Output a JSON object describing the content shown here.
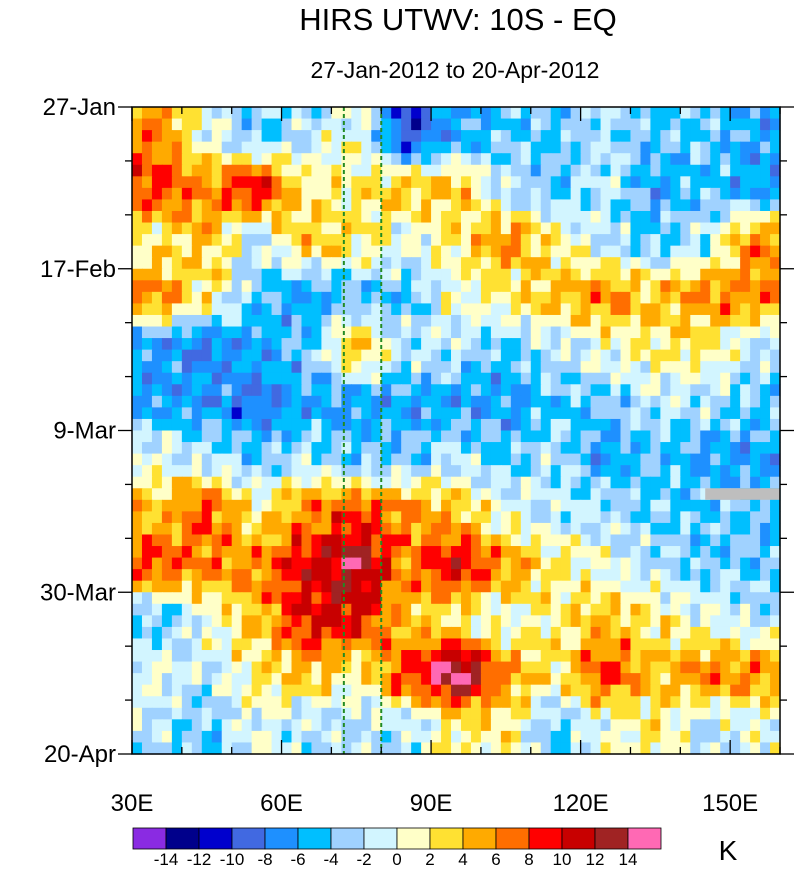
{
  "chart_data": {
    "type": "heatmap",
    "title": "HIRS UTWV: 10S - EQ",
    "subtitle": "27-Jan-2012 to 20-Apr-2012",
    "xlabel": "",
    "ylabel": "",
    "xlim": [
      30,
      160
    ],
    "ylim_days": [
      0,
      84
    ],
    "x_ticks": [
      {
        "value": 30,
        "label": "30E"
      },
      {
        "value": 60,
        "label": "60E"
      },
      {
        "value": 90,
        "label": "90E"
      },
      {
        "value": 120,
        "label": "120E"
      },
      {
        "value": 150,
        "label": "150E"
      }
    ],
    "y_ticks": [
      {
        "value": 0,
        "label": "27-Jan"
      },
      {
        "value": 21,
        "label": "17-Feb"
      },
      {
        "value": 42,
        "label": "9-Mar"
      },
      {
        "value": 63,
        "label": "30-Mar"
      },
      {
        "value": 84,
        "label": "20-Apr"
      }
    ],
    "reference_lines_lon": [
      72.5,
      80
    ],
    "reference_line_color": "#228B22",
    "missing_data": {
      "lon": [
        145,
        160
      ],
      "day": [
        49.5,
        51
      ],
      "color": "#BEBEBE"
    },
    "grid_lons": [
      35,
      45,
      55,
      65,
      75,
      85,
      95,
      105,
      115,
      125,
      135,
      145,
      155
    ],
    "grid_days": [
      3.5,
      10.5,
      17.5,
      24.5,
      31.5,
      38.5,
      45.5,
      52.5,
      59.5,
      66.5,
      73.5,
      80.5
    ],
    "values": [
      [
        6,
        0,
        -4,
        -2,
        0,
        -10,
        -6,
        -4,
        -4,
        -2,
        -4,
        -4,
        -6
      ],
      [
        8,
        6,
        10,
        2,
        2,
        4,
        4,
        -2,
        -4,
        -2,
        -6,
        -4,
        -6
      ],
      [
        2,
        4,
        -2,
        4,
        2,
        0,
        2,
        6,
        2,
        -2,
        -4,
        -2,
        6
      ],
      [
        6,
        2,
        -4,
        -6,
        -4,
        -4,
        0,
        2,
        4,
        6,
        4,
        6,
        6
      ],
      [
        -6,
        -8,
        -6,
        -4,
        4,
        -2,
        -2,
        -4,
        -2,
        0,
        2,
        2,
        -2
      ],
      [
        -6,
        -6,
        -8,
        -6,
        -6,
        -6,
        -6,
        -6,
        -4,
        -4,
        -2,
        -2,
        -4
      ],
      [
        0,
        -2,
        -4,
        -2,
        -4,
        -4,
        -2,
        -4,
        -2,
        -6,
        -4,
        -6,
        -6
      ],
      [
        4,
        8,
        2,
        6,
        8,
        6,
        4,
        0,
        -2,
        -2,
        -4,
        -4,
        -4
      ],
      [
        8,
        6,
        6,
        10,
        13,
        6,
        10,
        6,
        2,
        0,
        -2,
        -4,
        -4
      ],
      [
        -4,
        0,
        4,
        10,
        10,
        4,
        2,
        0,
        2,
        4,
        2,
        0,
        -2
      ],
      [
        0,
        -2,
        2,
        4,
        2,
        8,
        15,
        6,
        2,
        8,
        4,
        6,
        6
      ],
      [
        -2,
        -4,
        0,
        -2,
        -2,
        -2,
        2,
        2,
        -4,
        0,
        2,
        -2,
        0
      ]
    ],
    "colorbar": {
      "unit": "K",
      "levels": [
        -14,
        -12,
        -10,
        -8,
        -6,
        -4,
        -2,
        0,
        2,
        4,
        6,
        8,
        10,
        12,
        14
      ],
      "labels": [
        "-14",
        "-12",
        "-10",
        "-8",
        "-6",
        "-4",
        "-2",
        "0",
        "2",
        "4",
        "6",
        "8",
        "10",
        "12",
        "14"
      ],
      "colors": [
        "#8A2BE2",
        "#00008B",
        "#0000CD",
        "#4169E1",
        "#1E90FF",
        "#00BFFF",
        "#A0D2FF",
        "#D2F5FF",
        "#FFFFC8",
        "#FFE132",
        "#FFAA00",
        "#FF6E00",
        "#FF0000",
        "#C80000",
        "#A02323",
        "#FF69B4"
      ]
    }
  }
}
